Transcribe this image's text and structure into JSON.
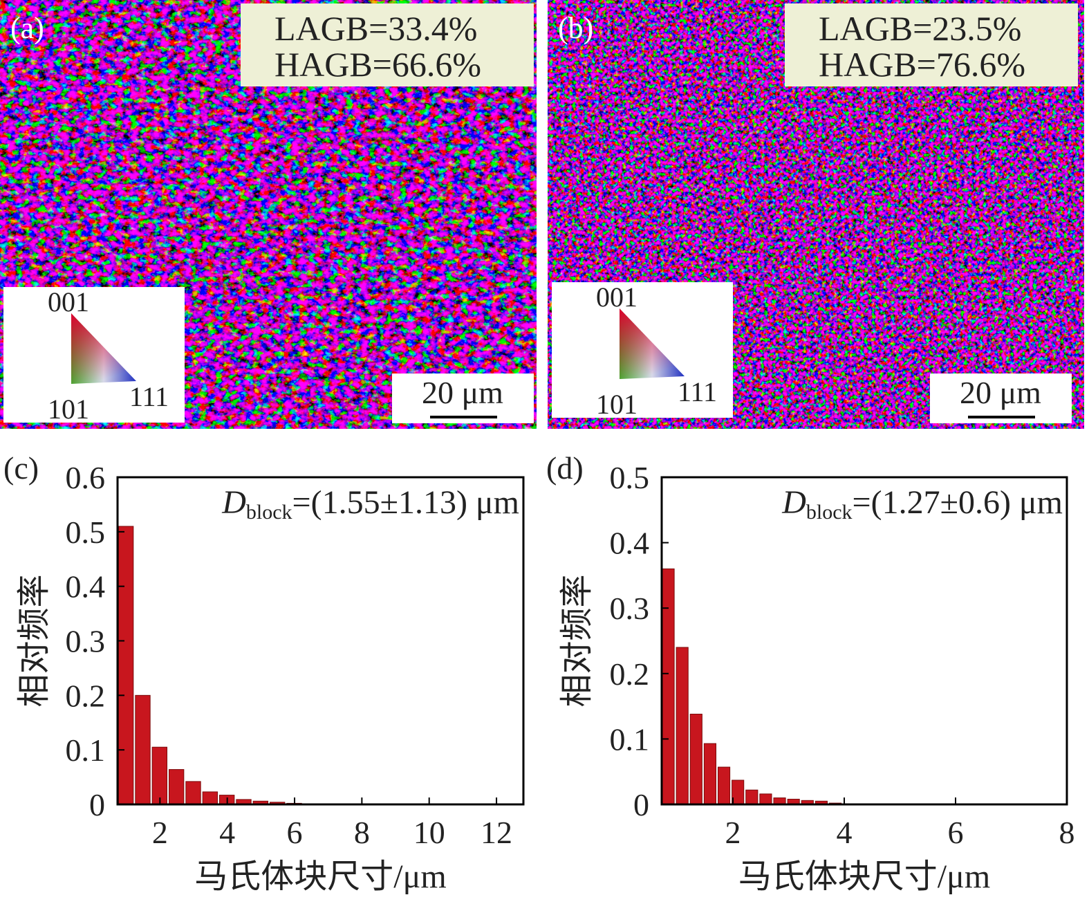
{
  "panels": [
    {
      "label": "(a)",
      "lagb": "LAGB=33.4%",
      "hagb": "HAGB=66.6%",
      "ipf": [
        "001",
        "101",
        "111"
      ],
      "scale": "20 μm"
    },
    {
      "label": "(b)",
      "lagb": "LAGB=23.5%",
      "hagb": "HAGB=76.6%",
      "ipf": [
        "001",
        "101",
        "111"
      ],
      "scale": "20 μm"
    }
  ],
  "chart_data": [
    {
      "type": "histogram",
      "panel_label": "(c)",
      "x_label": "马氏体块尺寸/μm",
      "y_label": "相对频率",
      "annotation": {
        "symbol": "D",
        "subscript": "block",
        "text": "=(1.55±1.13) μm"
      },
      "color": "#c8161e",
      "bins": [
        0.75,
        1.25,
        1.75,
        2.25,
        2.75,
        3.25,
        3.75,
        4.25,
        4.75,
        5.25,
        5.75,
        6.25,
        6.75
      ],
      "values": [
        0.51,
        0.2,
        0.105,
        0.064,
        0.042,
        0.023,
        0.017,
        0.009,
        0.006,
        0.004,
        0.002,
        0.001
      ],
      "xlim": [
        0.74,
        12.8
      ],
      "xticks": [
        2,
        4,
        6,
        8,
        10,
        12
      ],
      "ylim": [
        0,
        0.6
      ],
      "yticks": [
        0,
        0.1,
        0.2,
        0.3,
        0.4,
        0.5,
        0.6
      ]
    },
    {
      "type": "histogram",
      "panel_label": "(d)",
      "x_label": "马氏体块尺寸/μm",
      "y_label": "相对频率",
      "annotation": {
        "symbol": "D",
        "subscript": "block",
        "text": "=(1.27±0.6) μm"
      },
      "color": "#c8161e",
      "bins": [
        0.72,
        0.97,
        1.22,
        1.47,
        1.72,
        1.97,
        2.22,
        2.47,
        2.72,
        2.97,
        3.22,
        3.47,
        3.72,
        3.97,
        4.22
      ],
      "values": [
        0.36,
        0.24,
        0.138,
        0.093,
        0.057,
        0.037,
        0.022,
        0.016,
        0.01,
        0.008,
        0.006,
        0.005,
        0.002,
        0.001
      ],
      "xlim": [
        0.72,
        8
      ],
      "xticks": [
        2,
        4,
        6,
        8
      ],
      "ylim": [
        0,
        0.5
      ],
      "yticks": [
        0,
        0.1,
        0.2,
        0.3,
        0.4,
        0.5
      ]
    }
  ]
}
